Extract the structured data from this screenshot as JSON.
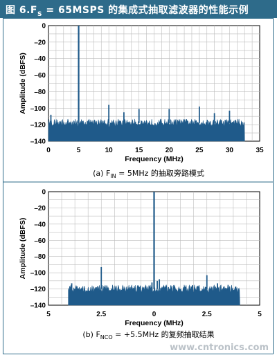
{
  "banner": {
    "prefix": "图 6.F",
    "subscript": "S",
    "suffix": " = 65MSPS 的集成式抽取滤波器的性能示例",
    "color": "#2e6b8a"
  },
  "watermark": "www.cntronics.com",
  "chart_data": [
    {
      "type": "line",
      "caption_prefix": "(a) F",
      "caption_sub": "IN",
      "caption_suffix": " = 5MHz 的抽取旁路模式",
      "xlabel": "Frequency (MHz)",
      "ylabel": "Amplitude (dBFS)",
      "xlim": [
        0,
        35
      ],
      "ylim": [
        -140,
        0
      ],
      "xticks": [
        "0",
        "5",
        "10",
        "15",
        "20",
        "25",
        "30",
        "35"
      ],
      "yticks": [
        "0",
        "–20",
        "–40",
        "–60",
        "–80",
        "–100",
        "–120",
        "–140"
      ],
      "grid": true,
      "series_color": "#1f5a8a",
      "noise_floor": {
        "from": 0,
        "to": 32.5,
        "level": -118
      },
      "spikes": [
        {
          "x": 5,
          "y": 0
        },
        {
          "x": 10,
          "y": -96
        },
        {
          "x": 15,
          "y": -101
        },
        {
          "x": 20,
          "y": -101
        },
        {
          "x": 25,
          "y": -98
        },
        {
          "x": 30,
          "y": -103
        },
        {
          "x": 0.4,
          "y": -108
        },
        {
          "x": 12.5,
          "y": -105
        },
        {
          "x": 27.5,
          "y": -106
        }
      ]
    },
    {
      "type": "line",
      "caption_prefix": "(b) F",
      "caption_sub": "NCO",
      "caption_suffix": " = +5.5MHz 的复频抽取结果",
      "xlabel": "Frequency (MHz)",
      "ylabel": "Amplitude (dBFS)",
      "xlim": [
        -5,
        5
      ],
      "ylim": [
        -140,
        0
      ],
      "xticks": [
        "5",
        "2.5",
        "0",
        "2.5",
        "5"
      ],
      "yticks": [
        "0",
        "–20",
        "–40",
        "–60",
        "–80",
        "–100",
        "–120",
        "–140"
      ],
      "grid": true,
      "series_color": "#1f5a8a",
      "noise_floor": {
        "from": -4.06,
        "to": 4.06,
        "level": -120
      },
      "spikes": [
        {
          "x": 0,
          "y": 0
        },
        {
          "x": -2.5,
          "y": -93
        },
        {
          "x": 2.5,
          "y": -103
        },
        {
          "x": -3.9,
          "y": -113
        },
        {
          "x": 0.25,
          "y": -108
        },
        {
          "x": 0.15,
          "y": -110
        },
        {
          "x": -0.1,
          "y": -112
        },
        {
          "x": 3.0,
          "y": -113
        }
      ]
    }
  ]
}
